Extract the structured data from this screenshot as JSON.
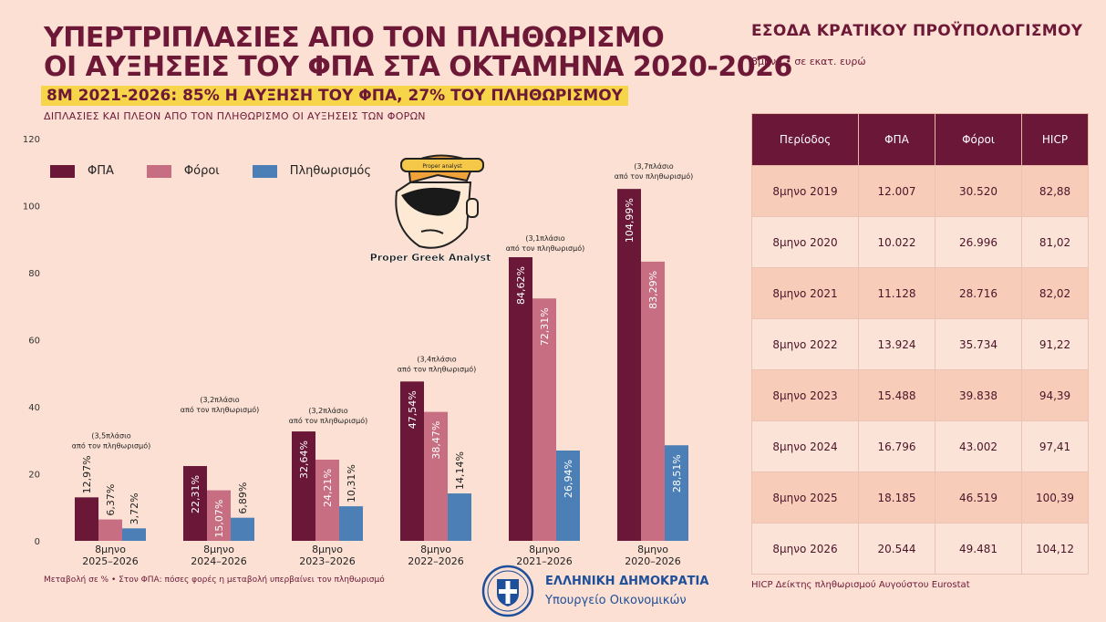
{
  "header": {
    "title_line1": "ΥΠΕΡΤΡΙΠΛΑΣΙΕΣ ΑΠΟ ΤΟΝ ΠΛΗΘΩΡΙΣΜΟ",
    "title_line2": "ΟΙ ΑΥΞΗΣΕΙΣ ΤΟΥ ΦΠΑ ΣΤΑ ΟΚΤΑΜΗΝΑ 2020-2026",
    "highlight": "8Μ 2021-2026: 85% Η ΑΥΞΗΣΗ ΤΟΥ ΦΠΑ, 27% ΤΟΥ ΠΛΗΘΩΡΙΣΜΟΥ",
    "subtitle": "ΔΙΠΛΑΣΙΕΣ ΚΑΙ ΠΛΕΟΝ ΑΠΟ ΤΟΝ ΠΛΗΘΩΡΙΣΜΟ ΟΙ ΑΥΞΗΣΕΙΣ ΤΩΝ ΦΟΡΩΝ"
  },
  "mascot": {
    "caption": "Proper Greek Analyst",
    "hat_text": "Proper analyst"
  },
  "chart_data": {
    "type": "bar",
    "categories": [
      [
        "8μηνο",
        "2025–2026"
      ],
      [
        "8μηνο",
        "2024–2026"
      ],
      [
        "8μηνο",
        "2023–2026"
      ],
      [
        "8μηνο",
        "2022–2026"
      ],
      [
        "8μηνο",
        "2021–2026"
      ],
      [
        "8μηνο",
        "2020–2026"
      ]
    ],
    "series": [
      {
        "name": "ΦΠΑ",
        "color": "#6b1838",
        "values": [
          12.97,
          22.31,
          32.64,
          47.54,
          84.62,
          104.99
        ],
        "labels": [
          "12,97%",
          "22,31%",
          "32,64%",
          "47,54%",
          "84,62%",
          "104,99%"
        ]
      },
      {
        "name": "Φόροι",
        "color": "#c86e82",
        "values": [
          6.37,
          15.07,
          24.21,
          38.47,
          72.31,
          83.29
        ],
        "labels": [
          "6,37%",
          "15,07%",
          "24,21%",
          "38,47%",
          "72,31%",
          "83,29%"
        ]
      },
      {
        "name": "Πληθωρισμός",
        "color": "#4b7fb5",
        "values": [
          3.72,
          6.89,
          10.31,
          14.14,
          26.94,
          28.51
        ],
        "labels": [
          "3,72%",
          "6,89%",
          "10,31%",
          "14,14%",
          "26,94%",
          "28,51%"
        ]
      }
    ],
    "annotations": [
      [
        "(3,5πλάσιο",
        "από τον πληθωρισμό)"
      ],
      [
        "(3,2πλάσιο",
        "από τον πληθωρισμό)"
      ],
      [
        "(3,2πλάσιο",
        "από τον πληθωρισμό)"
      ],
      [
        "(3,4πλάσιο",
        "από τον πληθωρισμό)"
      ],
      [
        "(3,1πλάσιο",
        "από τον πληθωρισμό)"
      ],
      [
        "(3,7πλάσιο",
        "από τον πληθωρισμό)"
      ]
    ],
    "yticks": [
      "0",
      "20",
      "40",
      "60",
      "80",
      "100",
      "120"
    ],
    "ylim": [
      0,
      120
    ],
    "legend_position": "top-left",
    "grid": false
  },
  "footnote": "Μεταβολή σε % • Στον ΦΠΑ: πόσες φορές η μεταβολή υπερβαίνει τον πληθωρισμό",
  "government": {
    "line1": "ΕΛΛΗΝΙΚΗ ΔΗΜΟΚΡΑΤΙΑ",
    "line2": "Υπουργείο Οικονομικών"
  },
  "revenue_table": {
    "title": "ΕΣΟΔΑ ΚΡΑΤΙΚΟΥ ΠΡΟΫΠΟΛΟΓΙΣΜΟΥ",
    "subtitle": "8μηνο • σε εκατ. ευρώ",
    "headers": [
      "Περίοδος",
      "ΦΠΑ",
      "Φόροι",
      "HICP"
    ],
    "rows": [
      [
        "8μηνο 2019",
        "12.007",
        "30.520",
        "82,88"
      ],
      [
        "8μηνο 2020",
        "10.022",
        "26.996",
        "81,02"
      ],
      [
        "8μηνο 2021",
        "11.128",
        "28.716",
        "82,02"
      ],
      [
        "8μηνο 2022",
        "13.924",
        "35.734",
        "91,22"
      ],
      [
        "8μηνο 2023",
        "15.488",
        "39.838",
        "94,39"
      ],
      [
        "8μηνο 2024",
        "16.796",
        "43.002",
        "97,41"
      ],
      [
        "8μηνο 2025",
        "18.185",
        "46.519",
        "100,39"
      ],
      [
        "8μηνο 2026",
        "20.544",
        "49.481",
        "104,12"
      ]
    ],
    "note": "HICP Δείκτης πληθωρισμού Αυγούστου Eurostat"
  }
}
